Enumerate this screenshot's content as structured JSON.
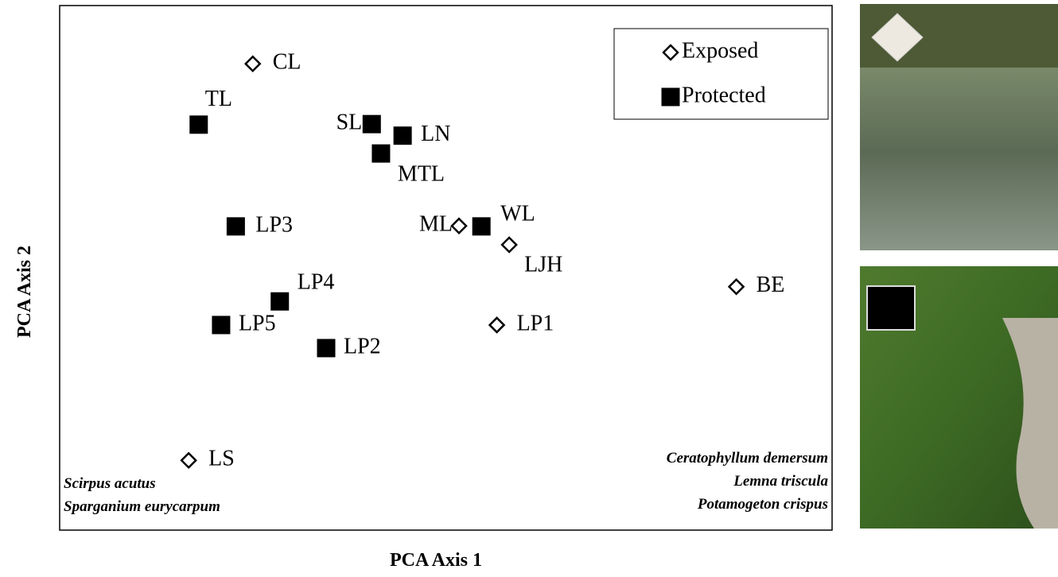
{
  "chart_data": {
    "type": "scatter",
    "xlabel": "PCA Axis 1",
    "ylabel": "PCA Axis 2",
    "xlim": [
      0,
      100
    ],
    "ylim": [
      0,
      100
    ],
    "series": [
      {
        "name": "Exposed",
        "marker": "diamond",
        "color": "#ffffff",
        "edgecolor": "#000000",
        "labels": [
          "CL",
          "ML",
          "LJH",
          "BE",
          "LP1",
          "LS"
        ],
        "x": [
          25.0,
          51.7,
          58.2,
          87.6,
          56.6,
          16.7
        ],
        "y": [
          88.9,
          58.0,
          54.4,
          46.4,
          39.1,
          13.3
        ]
      },
      {
        "name": "Protected",
        "marker": "square",
        "color": "#000000",
        "edgecolor": "#000000",
        "labels": [
          "TL",
          "SL",
          "LN",
          "MTL",
          "LP3",
          "WL",
          "LP4",
          "LP5",
          "LP2"
        ],
        "x": [
          18.0,
          40.4,
          44.4,
          41.6,
          22.8,
          54.6,
          28.5,
          20.9,
          34.5
        ],
        "y": [
          77.3,
          77.4,
          75.2,
          71.8,
          57.9,
          57.9,
          43.6,
          39.1,
          34.7
        ]
      }
    ],
    "annotations": {
      "left": [
        "Scirpus acutus",
        "Sparganium eurycarpum"
      ],
      "right": [
        "Ceratophyllum demersum",
        "Lemna triscula",
        "Potamogeton crispus"
      ]
    },
    "legend": "upper right"
  }
}
